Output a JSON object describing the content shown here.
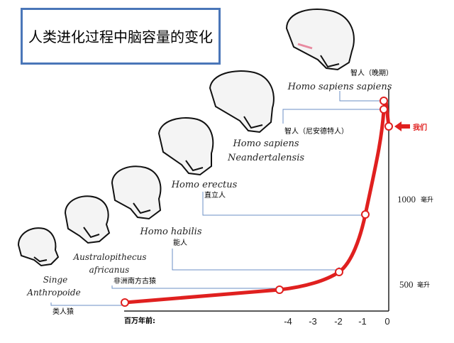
{
  "title": "人类进化过程中脑容量的变化",
  "x_axis": {
    "label": "百万年前:",
    "ticks": [
      "-4",
      "-3",
      "-2",
      "-1",
      "0"
    ]
  },
  "y_axis": {
    "ticks": [
      {
        "value": "500",
        "unit": "毫升"
      },
      {
        "value": "1000",
        "unit": "毫升"
      }
    ]
  },
  "species": [
    {
      "id": "singe",
      "latin_line1": "Singe",
      "latin_line2": "Anthropoide",
      "chinese": "类人猿"
    },
    {
      "id": "australopithecus",
      "latin_line1": "Australopithecus",
      "latin_line2": "africanus",
      "chinese": "非洲南方古猿"
    },
    {
      "id": "habilis",
      "latin_line1": "Homo habilis",
      "latin_line2": "",
      "chinese": "能人"
    },
    {
      "id": "erectus",
      "latin_line1": "Homo erectus",
      "latin_line2": "",
      "chinese": "直立人"
    },
    {
      "id": "neandertal",
      "latin_line1": "Homo sapiens",
      "latin_line2": "Neandertalensis",
      "chinese": "智人（尼安德特人）"
    },
    {
      "id": "sapiens",
      "latin_line1": "Homo sapiens sapiens",
      "latin_line2": "",
      "chinese": "智人（晚期）"
    }
  ],
  "us_label": "我们",
  "colors": {
    "curve": "#e0201f",
    "connector": "#6b8fc4",
    "title_border": "#4a76b8",
    "axis": "#222222"
  },
  "icons": [
    "skull-icon"
  ]
}
